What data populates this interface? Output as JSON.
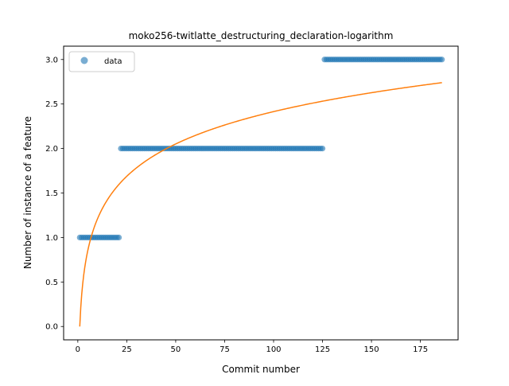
{
  "chart_data": {
    "type": "scatter",
    "title": "moko256-twitlatte_destructuring_declaration-logarithm",
    "xlabel": "Commit number",
    "ylabel": "Number of instance of a feature",
    "xlim": [
      -7.25,
      194.25
    ],
    "ylim": [
      -0.15,
      3.15
    ],
    "xticks": [
      0,
      25,
      50,
      75,
      100,
      125,
      150,
      175
    ],
    "yticks": [
      0.0,
      0.5,
      1.0,
      1.5,
      2.0,
      2.5,
      3.0
    ],
    "ytick_labels": [
      "0.0",
      "0.5",
      "1.0",
      "1.5",
      "2.0",
      "2.5",
      "3.0"
    ],
    "grid": false,
    "legend": {
      "position": "top-left",
      "entries": [
        "data"
      ]
    },
    "series": [
      {
        "name": "data",
        "kind": "scatter",
        "color": "#1f77b4",
        "alpha": 0.6,
        "segments": [
          {
            "x_start": 1,
            "x_end": 21,
            "y": 1
          },
          {
            "x_start": 22,
            "x_end": 125,
            "y": 2
          },
          {
            "x_start": 126,
            "x_end": 186,
            "y": 3
          }
        ]
      },
      {
        "kind": "line",
        "color": "#ff7f0e",
        "model": "logarithm",
        "a": 0.5243,
        "b": 0,
        "x_range": [
          1,
          186
        ]
      }
    ]
  }
}
